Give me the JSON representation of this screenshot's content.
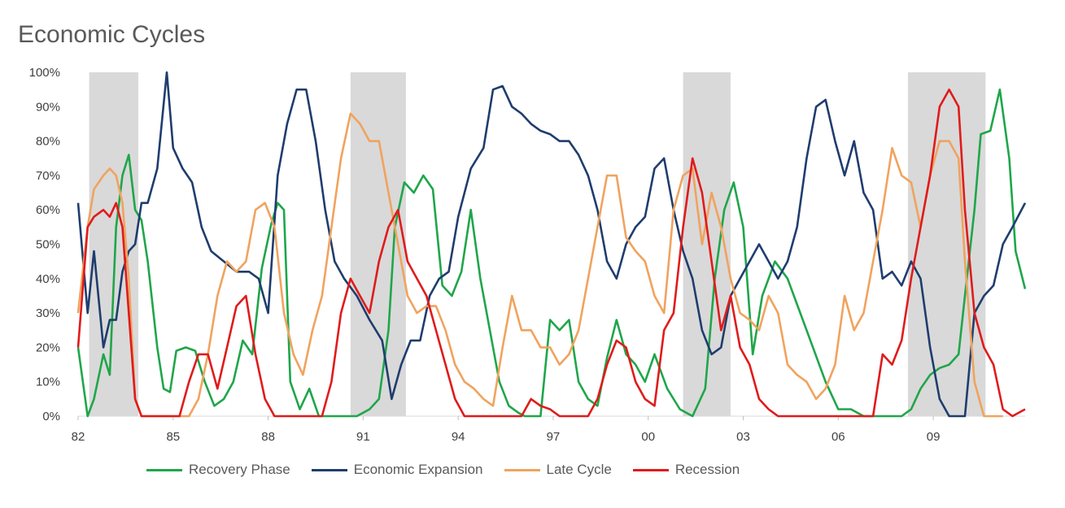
{
  "chart_data": {
    "type": "line",
    "title": "Economic Cycles",
    "xlabel": "",
    "ylabel": "",
    "xlim": [
      1982.0,
      2011.9
    ],
    "ylim": [
      0,
      100
    ],
    "y_ticks": [
      "0%",
      "10%",
      "20%",
      "30%",
      "40%",
      "50%",
      "60%",
      "70%",
      "80%",
      "90%",
      "100%"
    ],
    "x_ticks": [
      {
        "value": 1982,
        "label": "82"
      },
      {
        "value": 1985,
        "label": "85"
      },
      {
        "value": 1988,
        "label": "88"
      },
      {
        "value": 1991,
        "label": "91"
      },
      {
        "value": 1994,
        "label": "94"
      },
      {
        "value": 1997,
        "label": "97"
      },
      {
        "value": 2000,
        "label": "00"
      },
      {
        "value": 2003,
        "label": "03"
      },
      {
        "value": 2006,
        "label": "06"
      },
      {
        "value": 2009,
        "label": "09"
      }
    ],
    "recession_shading": [
      [
        1982.35,
        1983.9
      ],
      [
        1990.6,
        1992.35
      ],
      [
        2001.1,
        2002.6
      ],
      [
        2008.2,
        2010.65
      ]
    ],
    "grid": false,
    "legend_position": "bottom",
    "series": [
      {
        "name": "Recovery Phase",
        "color": "#1fa64a",
        "x": [
          1982.0,
          1982.3,
          1982.5,
          1982.8,
          1983.0,
          1983.2,
          1983.4,
          1983.6,
          1983.8,
          1984.0,
          1984.2,
          1984.5,
          1984.7,
          1984.9,
          1985.1,
          1985.4,
          1985.7,
          1986.0,
          1986.3,
          1986.6,
          1986.9,
          1987.2,
          1987.5,
          1987.8,
          1988.1,
          1988.3,
          1988.5,
          1988.7,
          1989.0,
          1989.3,
          1989.6,
          1990.0,
          1990.4,
          1990.8,
          1991.2,
          1991.5,
          1991.8,
          1992.0,
          1992.3,
          1992.6,
          1992.9,
          1993.2,
          1993.5,
          1993.8,
          1994.1,
          1994.4,
          1994.7,
          1995.0,
          1995.3,
          1995.6,
          1995.9,
          1996.1,
          1996.3,
          1996.6,
          1996.9,
          1997.2,
          1997.5,
          1997.8,
          1998.1,
          1998.4,
          1998.7,
          1999.0,
          1999.3,
          1999.6,
          1999.9,
          2000.2,
          2000.6,
          2001.0,
          2001.4,
          2001.8,
          2002.1,
          2002.4,
          2002.7,
          2003.0,
          2003.3,
          2003.6,
          2004.0,
          2004.4,
          2004.8,
          2005.2,
          2005.6,
          2006.0,
          2006.4,
          2006.8,
          2007.2,
          2007.6,
          2008.0,
          2008.3,
          2008.6,
          2008.9,
          2009.2,
          2009.5,
          2009.8,
          2010.0,
          2010.3,
          2010.5,
          2010.8,
          2011.1,
          2011.4,
          2011.6,
          2011.9
        ],
        "values": [
          20,
          0,
          5,
          18,
          12,
          55,
          70,
          76,
          60,
          57,
          45,
          20,
          8,
          7,
          19,
          20,
          19,
          10,
          3,
          5,
          10,
          22,
          18,
          43,
          56,
          62,
          60,
          10,
          2,
          8,
          0,
          0,
          0,
          0,
          2,
          5,
          25,
          55,
          68,
          65,
          70,
          66,
          38,
          35,
          42,
          60,
          40,
          25,
          10,
          3,
          1,
          0,
          0,
          0,
          28,
          25,
          28,
          10,
          5,
          3,
          17,
          28,
          18,
          15,
          10,
          18,
          8,
          2,
          0,
          8,
          40,
          60,
          68,
          55,
          18,
          35,
          45,
          40,
          30,
          20,
          10,
          2,
          2,
          0,
          0,
          0,
          0,
          2,
          8,
          12,
          14,
          15,
          18,
          35,
          60,
          82,
          83,
          95,
          75,
          48,
          37
        ]
      },
      {
        "name": "Economic Expansion",
        "color": "#1f3d6e",
        "x": [
          1982.0,
          1982.3,
          1982.5,
          1982.8,
          1983.0,
          1983.2,
          1983.4,
          1983.6,
          1983.8,
          1984.0,
          1984.2,
          1984.5,
          1984.8,
          1985.0,
          1985.3,
          1985.6,
          1985.9,
          1986.2,
          1986.6,
          1987.0,
          1987.4,
          1987.7,
          1988.0,
          1988.3,
          1988.6,
          1988.9,
          1989.2,
          1989.5,
          1989.8,
          1990.1,
          1990.4,
          1990.8,
          1991.2,
          1991.6,
          1991.9,
          1992.2,
          1992.5,
          1992.8,
          1993.1,
          1993.4,
          1993.7,
          1994.0,
          1994.4,
          1994.8,
          1995.1,
          1995.4,
          1995.7,
          1996.0,
          1996.3,
          1996.6,
          1996.9,
          1997.2,
          1997.5,
          1997.8,
          1998.1,
          1998.4,
          1998.7,
          1999.0,
          1999.3,
          1999.6,
          1999.9,
          2000.2,
          2000.5,
          2000.8,
          2001.1,
          2001.4,
          2001.7,
          2002.0,
          2002.3,
          2002.6,
          2002.9,
          2003.2,
          2003.5,
          2003.8,
          2004.1,
          2004.4,
          2004.7,
          2005.0,
          2005.3,
          2005.6,
          2005.9,
          2006.2,
          2006.5,
          2006.8,
          2007.1,
          2007.4,
          2007.7,
          2008.0,
          2008.3,
          2008.6,
          2008.9,
          2009.2,
          2009.5,
          2009.8,
          2010.0,
          2010.3,
          2010.6,
          2010.9,
          2011.2,
          2011.5,
          2011.9
        ],
        "values": [
          62,
          30,
          48,
          20,
          28,
          28,
          42,
          48,
          50,
          62,
          62,
          72,
          100,
          78,
          72,
          68,
          55,
          48,
          45,
          42,
          42,
          40,
          30,
          70,
          85,
          95,
          95,
          80,
          60,
          45,
          40,
          35,
          28,
          22,
          5,
          15,
          22,
          22,
          35,
          40,
          42,
          58,
          72,
          78,
          95,
          96,
          90,
          88,
          85,
          83,
          82,
          80,
          80,
          76,
          70,
          60,
          45,
          40,
          50,
          55,
          58,
          72,
          75,
          60,
          48,
          40,
          25,
          18,
          20,
          35,
          40,
          45,
          50,
          45,
          40,
          45,
          55,
          75,
          90,
          92,
          80,
          70,
          80,
          65,
          60,
          40,
          42,
          38,
          45,
          40,
          20,
          5,
          0,
          0,
          0,
          30,
          35,
          38,
          50,
          55,
          62
        ]
      },
      {
        "name": "Late Cycle",
        "color": "#f0a35e",
        "x": [
          1982.0,
          1982.3,
          1982.5,
          1982.8,
          1983.0,
          1983.2,
          1983.4,
          1983.6,
          1983.8,
          1984.0,
          1984.3,
          1984.6,
          1984.9,
          1985.2,
          1985.5,
          1985.8,
          1986.1,
          1986.4,
          1986.7,
          1987.0,
          1987.3,
          1987.6,
          1987.9,
          1988.2,
          1988.5,
          1988.8,
          1989.1,
          1989.4,
          1989.7,
          1990.0,
          1990.3,
          1990.6,
          1990.9,
          1991.2,
          1991.5,
          1991.8,
          1992.1,
          1992.4,
          1992.7,
          1993.0,
          1993.3,
          1993.6,
          1993.9,
          1994.2,
          1994.5,
          1994.8,
          1995.1,
          1995.4,
          1995.7,
          1996.0,
          1996.3,
          1996.6,
          1996.9,
          1997.2,
          1997.5,
          1997.8,
          1998.1,
          1998.4,
          1998.7,
          1999.0,
          1999.3,
          1999.6,
          1999.9,
          2000.2,
          2000.5,
          2000.8,
          2001.1,
          2001.4,
          2001.7,
          2002.0,
          2002.3,
          2002.6,
          2002.9,
          2003.2,
          2003.5,
          2003.8,
          2004.1,
          2004.4,
          2004.7,
          2005.0,
          2005.3,
          2005.6,
          2005.9,
          2006.2,
          2006.5,
          2006.8,
          2007.1,
          2007.4,
          2007.7,
          2008.0,
          2008.3,
          2008.6,
          2008.9,
          2009.2,
          2009.5,
          2009.8,
          2010.0,
          2010.3,
          2010.6,
          2010.9,
          2011.2
        ],
        "values": [
          30,
          55,
          66,
          70,
          72,
          70,
          62,
          40,
          5,
          0,
          0,
          0,
          0,
          0,
          0,
          5,
          18,
          35,
          45,
          42,
          45,
          60,
          62,
          55,
          30,
          18,
          12,
          25,
          35,
          55,
          75,
          88,
          85,
          80,
          80,
          65,
          50,
          35,
          30,
          32,
          32,
          25,
          15,
          10,
          8,
          5,
          3,
          20,
          35,
          25,
          25,
          20,
          20,
          15,
          18,
          25,
          40,
          55,
          70,
          70,
          52,
          48,
          45,
          35,
          30,
          60,
          70,
          72,
          50,
          65,
          55,
          40,
          30,
          28,
          25,
          35,
          30,
          15,
          12,
          10,
          5,
          8,
          15,
          35,
          25,
          30,
          45,
          60,
          78,
          70,
          68,
          55,
          70,
          80,
          80,
          75,
          45,
          10,
          0,
          0,
          0
        ]
      },
      {
        "name": "Recession",
        "color": "#e01b1b",
        "x": [
          1982.0,
          1982.3,
          1982.5,
          1982.8,
          1983.0,
          1983.2,
          1983.4,
          1983.6,
          1983.8,
          1984.0,
          1984.3,
          1984.6,
          1984.9,
          1985.2,
          1985.5,
          1985.8,
          1986.1,
          1986.4,
          1986.7,
          1987.0,
          1987.3,
          1987.6,
          1987.9,
          1988.2,
          1988.5,
          1988.8,
          1989.1,
          1989.4,
          1989.7,
          1990.0,
          1990.3,
          1990.6,
          1990.9,
          1991.2,
          1991.5,
          1991.8,
          1992.1,
          1992.4,
          1992.7,
          1993.0,
          1993.3,
          1993.6,
          1993.9,
          1994.2,
          1994.5,
          1994.8,
          1995.1,
          1995.4,
          1995.7,
          1996.0,
          1996.3,
          1996.6,
          1996.9,
          1997.2,
          1997.5,
          1997.8,
          1998.1,
          1998.4,
          1998.7,
          1999.0,
          1999.3,
          1999.6,
          1999.9,
          2000.2,
          2000.5,
          2000.8,
          2001.1,
          2001.4,
          2001.7,
          2002.0,
          2002.3,
          2002.6,
          2002.9,
          2003.2,
          2003.5,
          2003.8,
          2004.1,
          2004.4,
          2004.7,
          2005.0,
          2005.3,
          2005.6,
          2005.9,
          2006.2,
          2006.5,
          2006.8,
          2007.1,
          2007.4,
          2007.7,
          2008.0,
          2008.3,
          2008.6,
          2008.9,
          2009.2,
          2009.5,
          2009.8,
          2010.0,
          2010.3,
          2010.6,
          2010.9,
          2011.2,
          2011.5,
          2011.9
        ],
        "values": [
          20,
          55,
          58,
          60,
          58,
          62,
          55,
          30,
          5,
          0,
          0,
          0,
          0,
          0,
          10,
          18,
          18,
          8,
          20,
          32,
          35,
          18,
          5,
          0,
          0,
          0,
          0,
          0,
          0,
          10,
          30,
          40,
          35,
          30,
          45,
          55,
          60,
          45,
          40,
          35,
          25,
          15,
          5,
          0,
          0,
          0,
          0,
          0,
          0,
          0,
          5,
          3,
          2,
          0,
          0,
          0,
          0,
          5,
          15,
          22,
          20,
          10,
          5,
          3,
          25,
          30,
          55,
          75,
          65,
          45,
          25,
          35,
          20,
          15,
          5,
          2,
          0,
          0,
          0,
          0,
          0,
          0,
          0,
          0,
          0,
          0,
          0,
          18,
          15,
          22,
          40,
          55,
          70,
          90,
          95,
          90,
          60,
          30,
          20,
          15,
          2,
          0,
          2
        ]
      }
    ]
  }
}
